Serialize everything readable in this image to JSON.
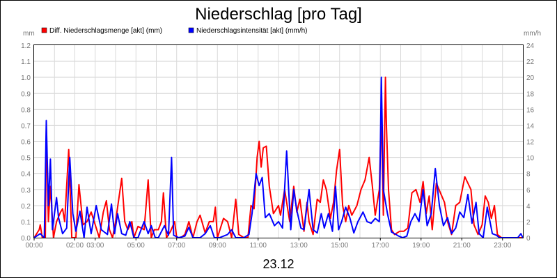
{
  "chart_data": {
    "type": "line",
    "title": "Niederschlag [pro Tag]",
    "date_label": "23.12",
    "y_left_unit": "mm",
    "y_right_unit": "mm/h",
    "y_left_range": [
      0,
      1.2
    ],
    "y_right_range": [
      0,
      24
    ],
    "y_left_ticks": [
      "0.0",
      "0.1",
      "0.2",
      "0.3",
      "0.4",
      "0.5",
      "0.6",
      "0.7",
      "0.8",
      "0.9",
      "1.0",
      "1.1",
      "1.2"
    ],
    "y_right_ticks": [
      "0",
      "2",
      "4",
      "6",
      "8",
      "10",
      "12",
      "14",
      "16",
      "18",
      "20",
      "22",
      "24"
    ],
    "x_range_hours": [
      0,
      24
    ],
    "x_ticks": [
      {
        "hour": 0,
        "label": "00:00"
      },
      {
        "hour": 2,
        "label": "02:00"
      },
      {
        "hour": 3,
        "label": "03:00"
      },
      {
        "hour": 5,
        "label": "05:00"
      },
      {
        "hour": 7,
        "label": "07:00"
      },
      {
        "hour": 9,
        "label": "09:00"
      },
      {
        "hour": 11,
        "label": "11:00"
      },
      {
        "hour": 13,
        "label": "13:00"
      },
      {
        "hour": 15,
        "label": "15:00"
      },
      {
        "hour": 17,
        "label": "17:00"
      },
      {
        "hour": 19,
        "label": "19:00"
      },
      {
        "hour": 21,
        "label": "21:00"
      },
      {
        "hour": 23,
        "label": "23:00"
      }
    ],
    "grid": true,
    "legend_position": "top-left",
    "series": [
      {
        "name": "Diff. Niederschlagsmenge [akt] (mm)",
        "axis": "left",
        "color": "#ff0000",
        "points": [
          [
            0,
            0
          ],
          [
            0.25,
            0.05
          ],
          [
            0.3,
            0.08
          ],
          [
            0.4,
            0
          ],
          [
            0.55,
            0
          ],
          [
            0.6,
            0.68
          ],
          [
            0.7,
            0.1
          ],
          [
            0.8,
            0.32
          ],
          [
            0.95,
            0
          ],
          [
            1.1,
            0.1
          ],
          [
            1.3,
            0.16
          ],
          [
            1.4,
            0.18
          ],
          [
            1.5,
            0.1
          ],
          [
            1.7,
            0.55
          ],
          [
            1.85,
            0
          ],
          [
            2.05,
            0
          ],
          [
            2.2,
            0.33
          ],
          [
            2.4,
            0.08
          ],
          [
            2.6,
            0.1
          ],
          [
            2.8,
            0.16
          ],
          [
            3.0,
            0.08
          ],
          [
            3.2,
            0
          ],
          [
            3.4,
            0.16
          ],
          [
            3.55,
            0.23
          ],
          [
            3.7,
            0.05
          ],
          [
            3.85,
            0
          ],
          [
            4.0,
            0.1
          ],
          [
            4.3,
            0.37
          ],
          [
            4.45,
            0.1
          ],
          [
            4.6,
            0.05
          ],
          [
            4.8,
            0.1
          ],
          [
            4.9,
            0
          ],
          [
            5.1,
            0.07
          ],
          [
            5.4,
            0.05
          ],
          [
            5.6,
            0.36
          ],
          [
            5.75,
            0
          ],
          [
            5.9,
            0.05
          ],
          [
            6.1,
            0.05
          ],
          [
            6.25,
            0.1
          ],
          [
            6.35,
            0.28
          ],
          [
            6.5,
            0
          ],
          [
            6.7,
            0.04
          ],
          [
            6.9,
            0.1
          ],
          [
            7.0,
            0
          ],
          [
            7.2,
            0
          ],
          [
            7.4,
            0.02
          ],
          [
            7.6,
            0.1
          ],
          [
            7.8,
            0
          ],
          [
            8.0,
            0.1
          ],
          [
            8.15,
            0.14
          ],
          [
            8.4,
            0.03
          ],
          [
            8.6,
            0.1
          ],
          [
            8.8,
            0.1
          ],
          [
            8.9,
            0.19
          ],
          [
            9.0,
            0
          ],
          [
            9.3,
            0.12
          ],
          [
            9.5,
            0.1
          ],
          [
            9.7,
            0
          ],
          [
            9.9,
            0.24
          ],
          [
            10.05,
            0.02
          ],
          [
            10.3,
            0
          ],
          [
            10.5,
            0
          ],
          [
            10.65,
            0.2
          ],
          [
            10.8,
            0.18
          ],
          [
            10.95,
            0.5
          ],
          [
            11.05,
            0.6
          ],
          [
            11.15,
            0.44
          ],
          [
            11.25,
            0.56
          ],
          [
            11.4,
            0.57
          ],
          [
            11.55,
            0.32
          ],
          [
            11.75,
            0.15
          ],
          [
            12.0,
            0.2
          ],
          [
            12.1,
            0.14
          ],
          [
            12.3,
            0.3
          ],
          [
            12.55,
            0.1
          ],
          [
            12.75,
            0.32
          ],
          [
            12.9,
            0.16
          ],
          [
            13.05,
            0.24
          ],
          [
            13.25,
            0.04
          ],
          [
            13.4,
            0.22
          ],
          [
            13.5,
            0.1
          ],
          [
            13.7,
            0.02
          ],
          [
            13.9,
            0.24
          ],
          [
            14.05,
            0.22
          ],
          [
            14.2,
            0.36
          ],
          [
            14.35,
            0.3
          ],
          [
            14.55,
            0.12
          ],
          [
            14.7,
            0.22
          ],
          [
            14.85,
            0.42
          ],
          [
            15.0,
            0.55
          ],
          [
            15.15,
            0.2
          ],
          [
            15.3,
            0.1
          ],
          [
            15.45,
            0.2
          ],
          [
            15.6,
            0.14
          ],
          [
            15.85,
            0.2
          ],
          [
            16.05,
            0.3
          ],
          [
            16.25,
            0.36
          ],
          [
            16.45,
            0.5
          ],
          [
            16.6,
            0.33
          ],
          [
            16.75,
            0.14
          ],
          [
            16.95,
            0.3
          ],
          [
            17.05,
            0.78
          ],
          [
            17.15,
            0.14
          ],
          [
            17.25,
            1.0
          ],
          [
            17.3,
            0.7
          ],
          [
            17.4,
            0.3
          ],
          [
            17.55,
            0.05
          ],
          [
            17.7,
            0.02
          ],
          [
            17.95,
            0.04
          ],
          [
            18.15,
            0.04
          ],
          [
            18.35,
            0.06
          ],
          [
            18.55,
            0.28
          ],
          [
            18.75,
            0.3
          ],
          [
            18.95,
            0.22
          ],
          [
            19.1,
            0.35
          ],
          [
            19.25,
            0.15
          ],
          [
            19.4,
            0.26
          ],
          [
            19.55,
            0.05
          ],
          [
            19.75,
            0.34
          ],
          [
            19.95,
            0.28
          ],
          [
            20.15,
            0.22
          ],
          [
            20.3,
            0.1
          ],
          [
            20.5,
            0.02
          ],
          [
            20.7,
            0.2
          ],
          [
            20.9,
            0.22
          ],
          [
            21.15,
            0.38
          ],
          [
            21.3,
            0.34
          ],
          [
            21.45,
            0.3
          ],
          [
            21.6,
            0.08
          ],
          [
            21.8,
            0.02
          ],
          [
            22.0,
            0.08
          ],
          [
            22.15,
            0.26
          ],
          [
            22.3,
            0.22
          ],
          [
            22.45,
            0.12
          ],
          [
            22.6,
            0.2
          ],
          [
            22.75,
            0.02
          ],
          [
            22.95,
            0
          ],
          [
            23.15,
            0
          ],
          [
            23.45,
            0
          ],
          [
            23.7,
            0
          ],
          [
            24,
            0
          ]
        ]
      },
      {
        "name": "Niederschlagsintensität [akt] (mm/h)",
        "axis": "right",
        "color": "#0000ff",
        "points": [
          [
            0,
            0
          ],
          [
            0.3,
            0.5
          ],
          [
            0.5,
            0
          ],
          [
            0.6,
            14.6
          ],
          [
            0.7,
            4
          ],
          [
            0.8,
            9.8
          ],
          [
            0.9,
            1
          ],
          [
            1.1,
            5
          ],
          [
            1.2,
            2.5
          ],
          [
            1.4,
            0.5
          ],
          [
            1.6,
            1.2
          ],
          [
            1.75,
            10
          ],
          [
            1.9,
            3
          ],
          [
            2.05,
            0.8
          ],
          [
            2.25,
            3.3
          ],
          [
            2.45,
            0
          ],
          [
            2.6,
            3.8
          ],
          [
            2.8,
            0.5
          ],
          [
            3.05,
            4
          ],
          [
            3.3,
            1
          ],
          [
            3.6,
            0.4
          ],
          [
            3.8,
            4.2
          ],
          [
            3.95,
            0.5
          ],
          [
            4.1,
            3
          ],
          [
            4.3,
            0.5
          ],
          [
            4.5,
            0.3
          ],
          [
            4.7,
            2
          ],
          [
            4.9,
            0
          ],
          [
            5.1,
            0
          ],
          [
            5.4,
            2
          ],
          [
            5.6,
            0.5
          ],
          [
            5.75,
            1.5
          ],
          [
            5.95,
            0
          ],
          [
            6.1,
            0
          ],
          [
            6.4,
            1.5
          ],
          [
            6.6,
            0.3
          ],
          [
            6.75,
            10
          ],
          [
            6.85,
            0.3
          ],
          [
            7.1,
            0
          ],
          [
            7.4,
            0.2
          ],
          [
            7.6,
            1.3
          ],
          [
            7.8,
            0
          ],
          [
            8.15,
            0
          ],
          [
            8.4,
            0.5
          ],
          [
            8.65,
            1.5
          ],
          [
            8.85,
            0
          ],
          [
            9.1,
            0
          ],
          [
            9.5,
            0.4
          ],
          [
            9.7,
            1
          ],
          [
            9.9,
            0
          ],
          [
            10.3,
            0
          ],
          [
            10.55,
            0.4
          ],
          [
            10.7,
            3
          ],
          [
            10.9,
            8
          ],
          [
            11.05,
            6.5
          ],
          [
            11.2,
            7.5
          ],
          [
            11.35,
            2.5
          ],
          [
            11.55,
            3
          ],
          [
            11.8,
            1.5
          ],
          [
            12.0,
            2
          ],
          [
            12.2,
            1.2
          ],
          [
            12.4,
            10.8
          ],
          [
            12.6,
            1
          ],
          [
            12.75,
            6
          ],
          [
            12.9,
            3.4
          ],
          [
            13.1,
            1.2
          ],
          [
            13.25,
            1
          ],
          [
            13.5,
            6
          ],
          [
            13.7,
            1
          ],
          [
            13.9,
            0.6
          ],
          [
            14.1,
            3
          ],
          [
            14.25,
            1.2
          ],
          [
            14.45,
            3
          ],
          [
            14.65,
            0.8
          ],
          [
            14.8,
            6.4
          ],
          [
            14.95,
            1
          ],
          [
            15.1,
            2
          ],
          [
            15.3,
            3.8
          ],
          [
            15.5,
            2.5
          ],
          [
            15.7,
            0.6
          ],
          [
            15.9,
            2
          ],
          [
            16.15,
            3.2
          ],
          [
            16.35,
            2
          ],
          [
            16.55,
            1.8
          ],
          [
            16.75,
            2.4
          ],
          [
            16.95,
            2
          ],
          [
            17.05,
            20
          ],
          [
            17.15,
            6
          ],
          [
            17.35,
            3
          ],
          [
            17.55,
            0.7
          ],
          [
            17.7,
            0.5
          ],
          [
            17.9,
            0.2
          ],
          [
            18.1,
            0
          ],
          [
            18.3,
            0.2
          ],
          [
            18.5,
            2
          ],
          [
            18.7,
            3
          ],
          [
            18.9,
            2
          ],
          [
            19.1,
            6
          ],
          [
            19.3,
            1.5
          ],
          [
            19.5,
            3
          ],
          [
            19.7,
            8.6
          ],
          [
            19.9,
            4
          ],
          [
            20.1,
            1.5
          ],
          [
            20.3,
            2.5
          ],
          [
            20.5,
            0.5
          ],
          [
            20.7,
            1.2
          ],
          [
            20.9,
            3.2
          ],
          [
            21.1,
            2.5
          ],
          [
            21.3,
            5.4
          ],
          [
            21.5,
            1.8
          ],
          [
            21.7,
            4.4
          ],
          [
            21.85,
            0.5
          ],
          [
            22.05,
            0
          ],
          [
            22.25,
            3.8
          ],
          [
            22.5,
            0.5
          ],
          [
            22.7,
            0.3
          ],
          [
            22.85,
            0
          ],
          [
            23.1,
            0
          ],
          [
            23.5,
            0
          ],
          [
            23.75,
            0
          ],
          [
            23.9,
            0.5
          ],
          [
            24,
            0
          ]
        ]
      }
    ]
  }
}
